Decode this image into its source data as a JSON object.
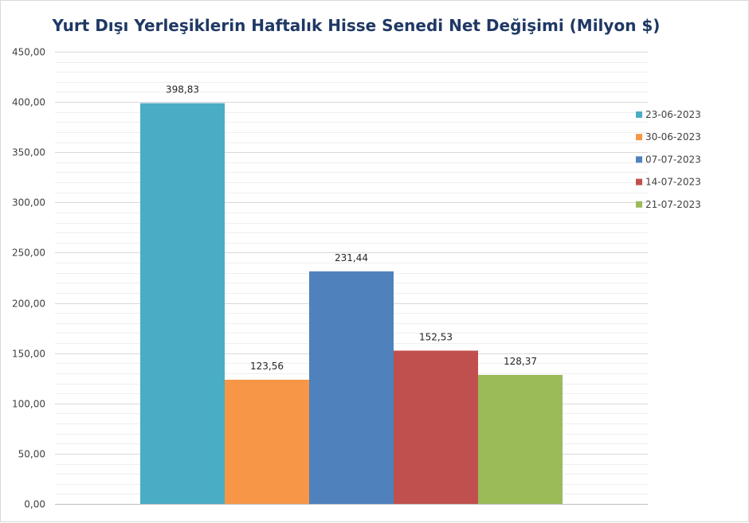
{
  "chart_data": {
    "type": "bar",
    "title": "Yurt Dışı Yerleşiklerin Haftalık Hisse Senedi Net Değişimi (Milyon $)",
    "xlabel": "",
    "ylabel": "",
    "ylim": [
      0,
      450
    ],
    "y_major_step": 50,
    "y_minor_step": 10,
    "y_tick_labels": [
      "0,00",
      "50,00",
      "100,00",
      "150,00",
      "200,00",
      "250,00",
      "300,00",
      "350,00",
      "400,00",
      "450,00"
    ],
    "grid": true,
    "legend_position": "right",
    "series": [
      {
        "name": "23-06-2023",
        "value": 398.83,
        "label": "398,83",
        "color": "#4bacc6"
      },
      {
        "name": "30-06-2023",
        "value": 123.56,
        "label": "123,56",
        "color": "#f79646"
      },
      {
        "name": "07-07-2023",
        "value": 231.44,
        "label": "231,44",
        "color": "#4f81bd"
      },
      {
        "name": "14-07-2023",
        "value": 152.53,
        "label": "152,53",
        "color": "#c0504d"
      },
      {
        "name": "21-07-2023",
        "value": 128.37,
        "label": "128,37",
        "color": "#9bbb59"
      }
    ]
  }
}
